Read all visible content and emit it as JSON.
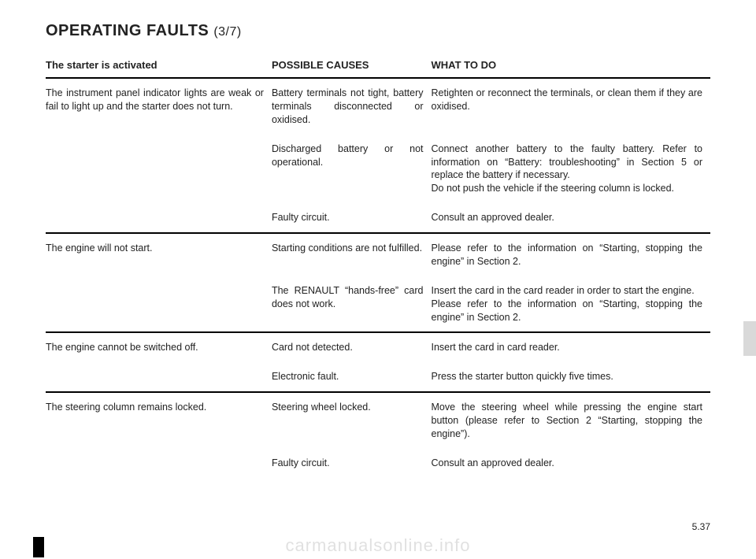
{
  "heading": {
    "main": "OPERATING FAULTS ",
    "sub": "(3/7)"
  },
  "columns": {
    "c1": "The starter is activated",
    "c2": "POSSIBLE CAUSES",
    "c3": "WHAT TO DO"
  },
  "rows": [
    {
      "c1": "The instrument panel indicator lights are weak or fail to light up and the starter does not turn.",
      "c2": "Battery terminals not tight, battery terminals discon­nected or oxidised.",
      "c3": "Retighten or reconnect the terminals, or clean them if they are oxidised.",
      "end": false
    },
    {
      "c1": "",
      "c2": "Discharged battery or not operational.",
      "c3": "Connect another battery to the faulty battery. Refer to information on “Battery: troubleshooting” in Section 5 or replace the battery if necessary.\nDo not push the vehicle if the steering column is locked.",
      "end": false
    },
    {
      "c1": "",
      "c2": "Faulty circuit.",
      "c3": "Consult an approved dealer.",
      "end": true
    },
    {
      "c1": "The engine will not start.",
      "c2": "Starting conditions are not fulfilled.",
      "c3": "Please refer to the information on “Starting, stopping the engine” in Section 2.",
      "end": false
    },
    {
      "c1": "",
      "c2": "The RENAULT “hands-free” card does not work.",
      "c3": "Insert the card in the card reader in order to start the engine.\nPlease refer to the information on “Starting, stopping the engine” in Section 2.",
      "end": true
    },
    {
      "c1": "The engine cannot be switched off.",
      "c2": "Card not detected.",
      "c3": "Insert the card in card reader.",
      "end": false
    },
    {
      "c1": "",
      "c2": "Electronic fault.",
      "c3": "Press the starter button quickly five times.",
      "end": true
    },
    {
      "c1": "The steering column remains locked.",
      "c2": "Steering wheel locked.",
      "c3": "Move the steering wheel while pressing the engine start button (please refer to Section 2 “Starting, stop­ping the engine”).",
      "end": false
    },
    {
      "c1": "",
      "c2": "Faulty circuit.",
      "c3": "Consult an approved dealer.",
      "end": false
    }
  ],
  "pagenum": "5.37",
  "watermark": "carmanualsonline.info"
}
